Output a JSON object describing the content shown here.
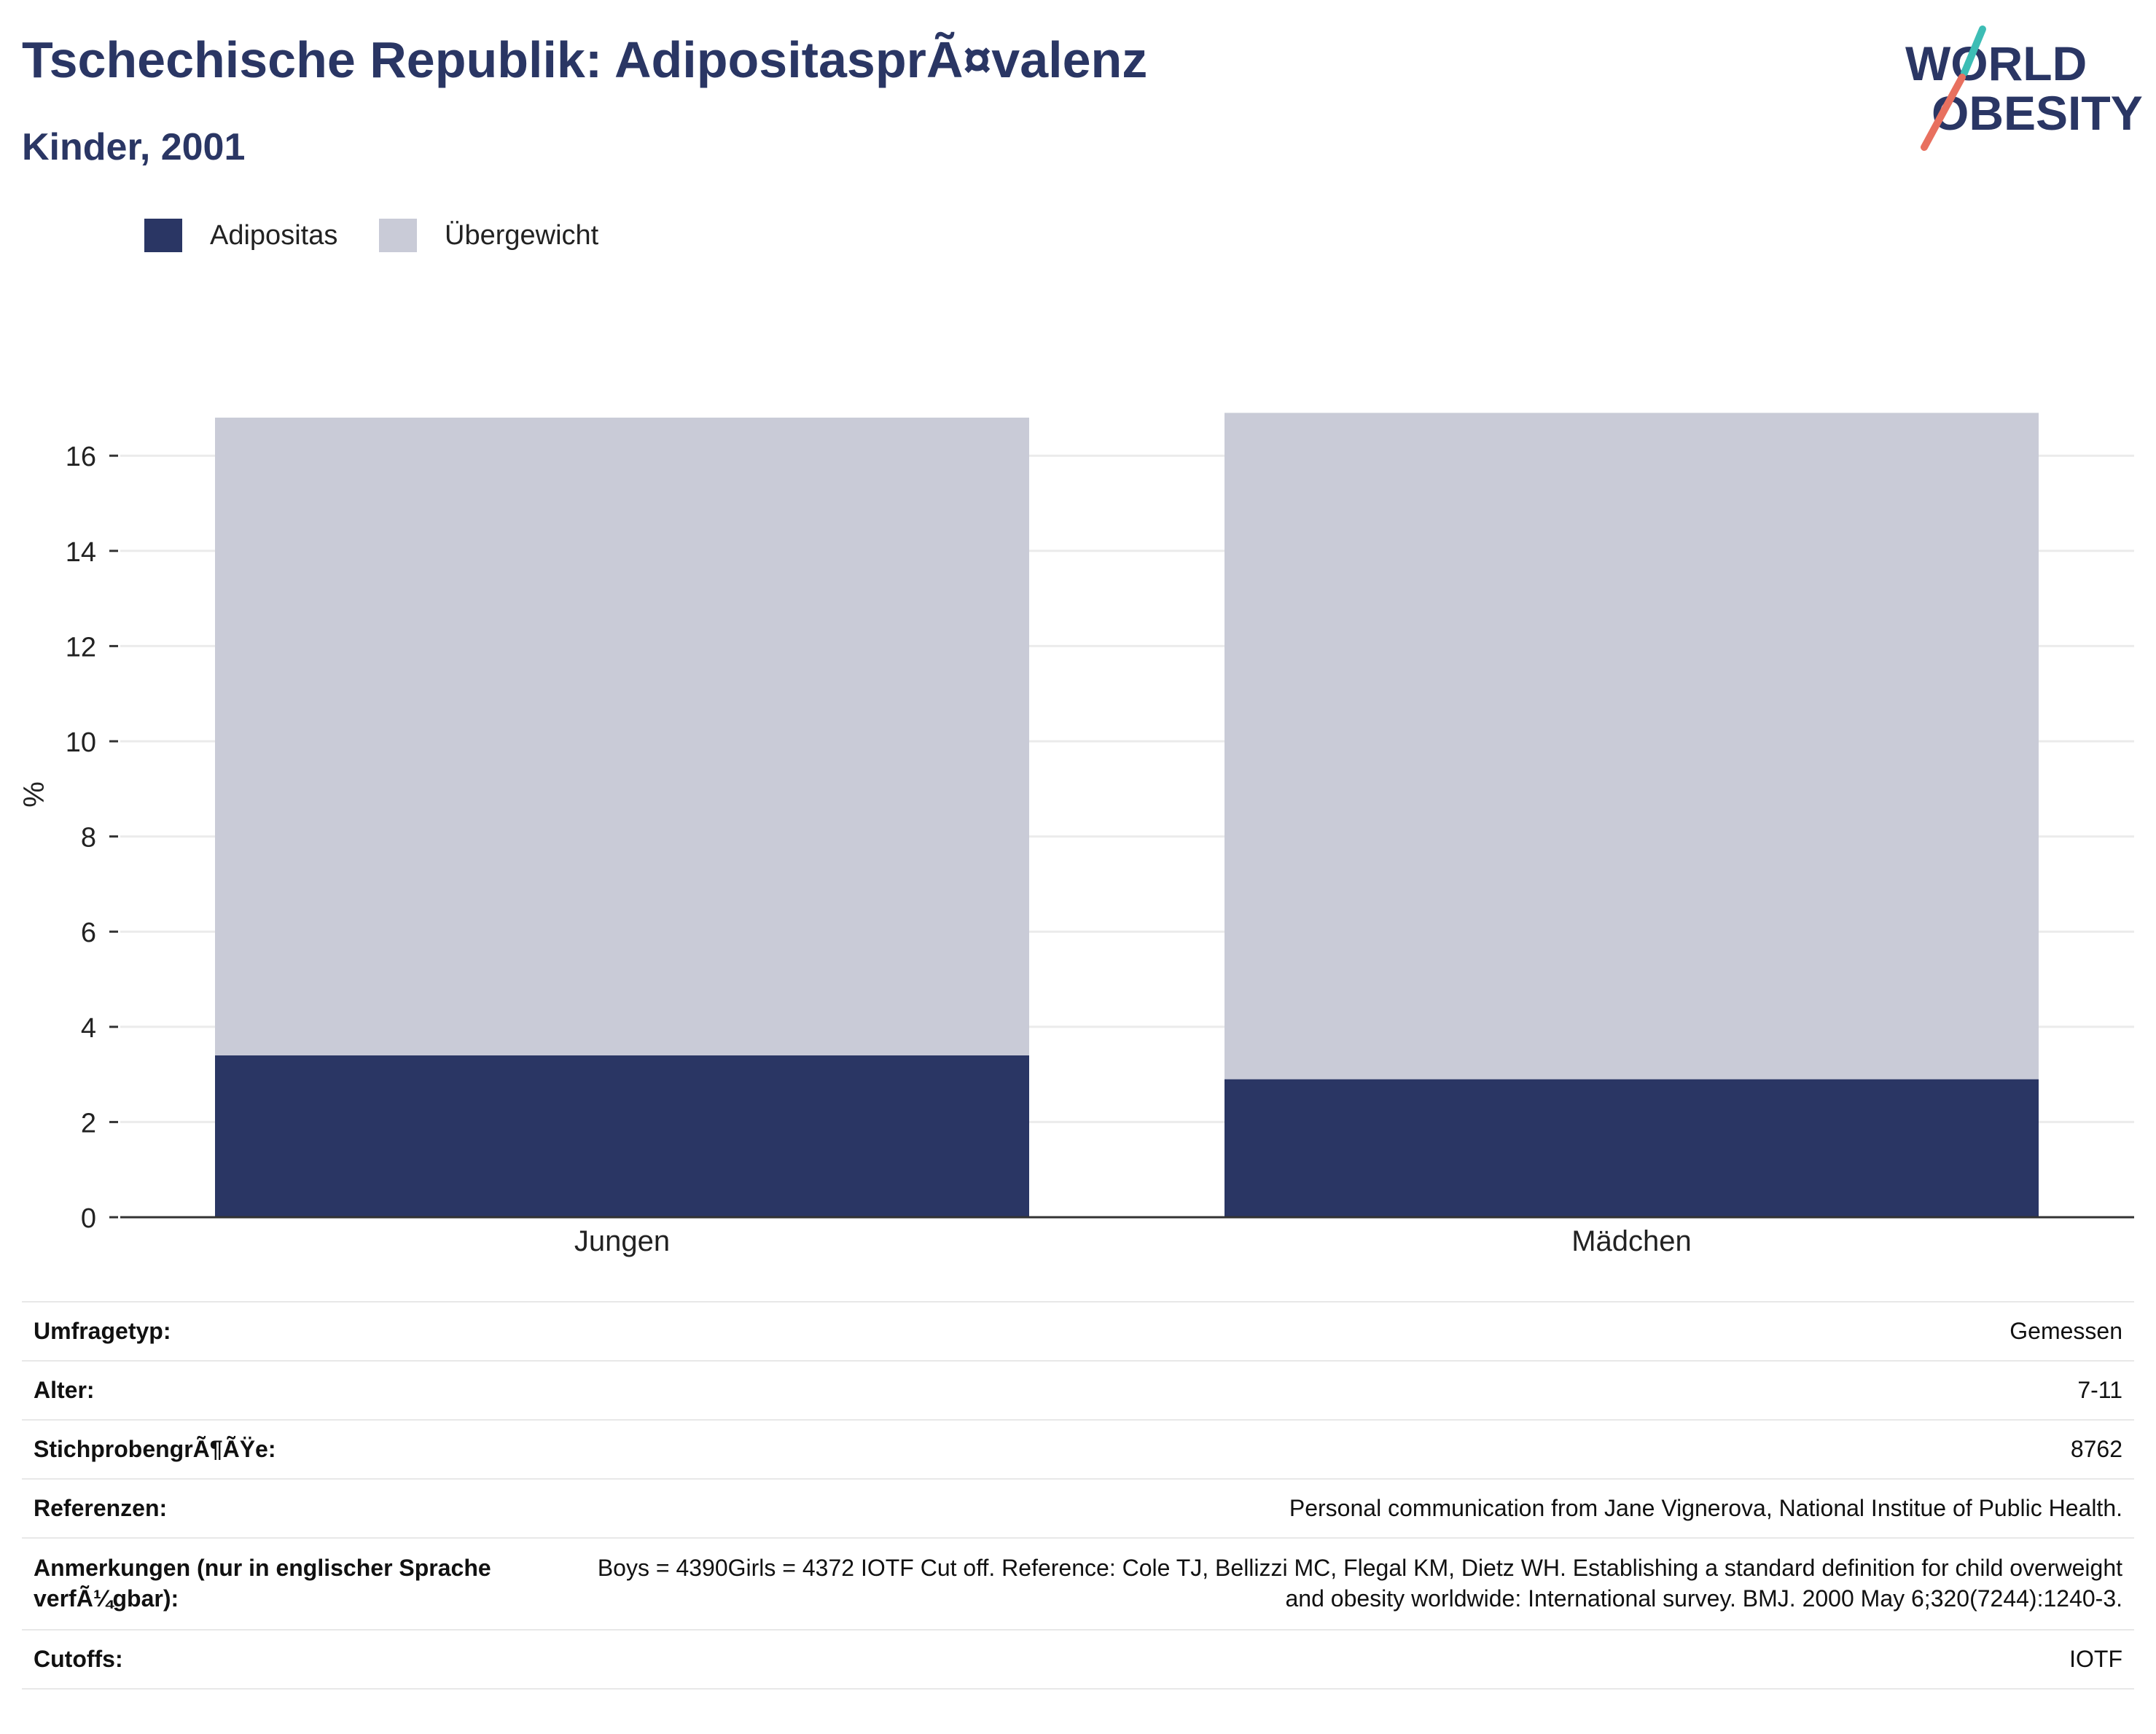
{
  "header": {
    "title": "Tschechische Republik: AdipositasprÃ¤valenz",
    "subtitle": "Kinder, 2001"
  },
  "logo": {
    "line1": "WORLD",
    "line2": "OBESITY",
    "accent_teal": "#3dbdb5",
    "accent_coral": "#e8705f"
  },
  "colors": {
    "adipositas": "#2a3664",
    "uebergewicht": "#c9cbd7",
    "text_dark": "#2a3664",
    "gridline": "#ebebeb",
    "axis": "#333333"
  },
  "chart_data": {
    "type": "bar",
    "stacked": true,
    "categories": [
      "Jungen",
      "Mädchen"
    ],
    "series": [
      {
        "name": "Adipositas",
        "values": [
          3.4,
          2.9
        ]
      },
      {
        "name": "Übergewicht",
        "values": [
          13.4,
          14.0
        ]
      }
    ],
    "ylabel": "%",
    "ylim": [
      0,
      17
    ],
    "yticks": [
      0,
      2,
      4,
      6,
      8,
      10,
      12,
      14,
      16
    ],
    "grid": true,
    "legend_position": "top-left"
  },
  "info": {
    "rows": [
      {
        "label": "Umfragetyp:",
        "value": "Gemessen"
      },
      {
        "label": "Alter:",
        "value": "7-11"
      },
      {
        "label": "StichprobengrÃ¶ÃŸe:",
        "value": "8762"
      },
      {
        "label": "Referenzen:",
        "value": "Personal communication from Jane Vignerova, National Institue of Public Health."
      },
      {
        "label": "Anmerkungen (nur in englischer Sprache verfÃ¼gbar):",
        "value": "Boys = 4390Girls = 4372 IOTF Cut off. Reference: Cole TJ, Bellizzi MC, Flegal KM, Dietz WH. Establishing a standard definition for child overweight and obesity worldwide: International survey. BMJ. 2000 May 6;320(7244):1240-3."
      },
      {
        "label": "Cutoffs:",
        "value": "IOTF"
      }
    ]
  }
}
